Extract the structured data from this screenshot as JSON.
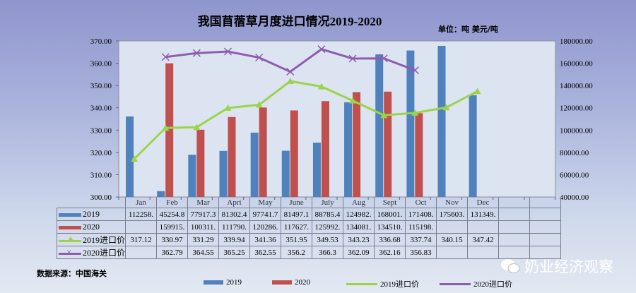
{
  "chart_data": {
    "type": "bar+line",
    "title": "我国苜蓿草月度进口情况2019-2020",
    "unit_label": "单位：吨 美元/吨",
    "categories": [
      "Jan",
      "Feb",
      "Mar",
      "Apri",
      "May",
      "June",
      "July",
      "Aug",
      "Sept",
      "Oct",
      "Nov",
      "Dec"
    ],
    "left_axis": {
      "min": 300,
      "max": 370,
      "step": 10,
      "ticks": [
        "300.00",
        "310.00",
        "320.00",
        "330.00",
        "340.00",
        "350.00",
        "360.00",
        "370.00"
      ]
    },
    "right_axis": {
      "min": 40000,
      "max": 180000,
      "step": 20000,
      "ticks": [
        "40000.00",
        "60000.00",
        "80000.00",
        "100000.00",
        "120000.00",
        "140000.00",
        "160000.00",
        "180000.00"
      ]
    },
    "series": [
      {
        "name": "2019",
        "type": "bar",
        "axis": "right",
        "color": "#4f81bd",
        "values": [
          112258,
          45254.8,
          77917.3,
          81302.4,
          97741.7,
          81497.1,
          88785.4,
          124982,
          168001,
          171408,
          175603,
          131349
        ],
        "display": [
          "112258.",
          "45254.8",
          "77917.3",
          "81302.4",
          "97741.7",
          "81497.1",
          "88785.4",
          "124982.",
          "168001.",
          "171408.",
          "175603.",
          "131349."
        ]
      },
      {
        "name": "2020",
        "type": "bar",
        "axis": "right",
        "color": "#c0504d",
        "values": [
          null,
          159915,
          100311,
          111790,
          120286,
          117627,
          125992,
          134081,
          134510,
          115198,
          null,
          null
        ],
        "display": [
          "",
          "159915.",
          "100311.",
          "111790.",
          "120286.",
          "117627.",
          "125992.",
          "134081.",
          "134510.",
          "115198.",
          "",
          ""
        ]
      },
      {
        "name": "2019进口价",
        "type": "line",
        "axis": "left",
        "color": "#9bd34a",
        "marker": "triangle",
        "values": [
          317.12,
          330.97,
          331.29,
          339.94,
          341.36,
          351.95,
          349.53,
          343.23,
          336.68,
          337.74,
          340.15,
          347.42
        ],
        "display": [
          "317.12",
          "330.97",
          "331.29",
          "339.94",
          "341.36",
          "351.95",
          "349.53",
          "343.23",
          "336.68",
          "337.74",
          "340.15",
          "347.42"
        ]
      },
      {
        "name": "2020进口价",
        "type": "line",
        "axis": "left",
        "color": "#8e5db0",
        "marker": "x",
        "values": [
          null,
          362.79,
          364.55,
          365.25,
          362.55,
          356.2,
          366.3,
          362.09,
          362.16,
          356.83,
          null,
          null
        ],
        "display": [
          "",
          "362.79",
          "364.55",
          "365.25",
          "362.55",
          "356.2",
          "366.3",
          "362.09",
          "362.16",
          "356.83",
          "",
          ""
        ]
      }
    ],
    "legend_position": "bottom"
  },
  "source": "数据来源：中国海关",
  "watermark": "奶业经济观察"
}
